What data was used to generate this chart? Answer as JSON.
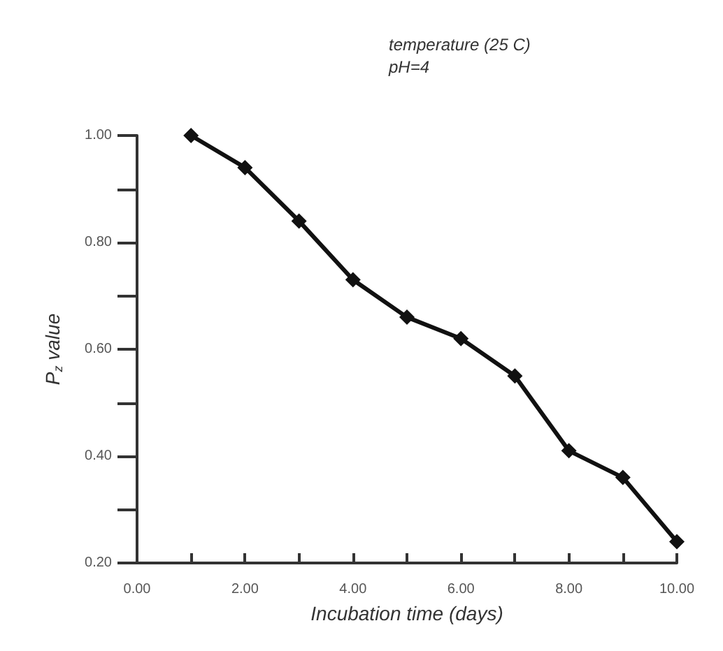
{
  "chart_data": {
    "type": "line",
    "xlabel": "Incubation time (days)",
    "ylabel": "P$_{z}$ value",
    "annotations": [
      "temperature (25 C)",
      "pH=4"
    ],
    "x": [
      1,
      2,
      3,
      4,
      5,
      6,
      7,
      8,
      9,
      10
    ],
    "series": [
      {
        "color": "#111111",
        "values": [
          1.0,
          0.94,
          0.84,
          0.73,
          0.66,
          0.62,
          0.55,
          0.41,
          0.36,
          0.24
        ]
      }
    ],
    "xlim": [
      0,
      10
    ],
    "xticks": [
      {
        "value": 0,
        "label": "0.00"
      },
      {
        "value": 1,
        "label": null
      },
      {
        "value": 2,
        "label": "2.00"
      },
      {
        "value": 3,
        "label": null
      },
      {
        "value": 4,
        "label": "4.00"
      },
      {
        "value": 5,
        "label": null
      },
      {
        "value": 6,
        "label": "6.00"
      },
      {
        "value": 7,
        "label": null
      },
      {
        "value": 8,
        "label": "8.00"
      },
      {
        "value": 9,
        "label": null
      },
      {
        "value": 10,
        "label": "10.00"
      }
    ],
    "ylim": [
      0.2,
      1.0
    ],
    "yticks": [
      {
        "value": 0.2,
        "label": "0.20"
      },
      {
        "value": 0.3,
        "label": null
      },
      {
        "value": 0.4,
        "label": "0.40"
      },
      {
        "value": 0.5,
        "label": null
      },
      {
        "value": 0.6,
        "label": "0.60"
      },
      {
        "value": 0.7,
        "label": null
      },
      {
        "value": 0.8,
        "label": "0.80"
      },
      {
        "value": 0.9,
        "label": null
      },
      {
        "value": 1.0,
        "label": "1.00"
      }
    ],
    "grid": false,
    "marker": "diamond",
    "line_style": "solid"
  }
}
